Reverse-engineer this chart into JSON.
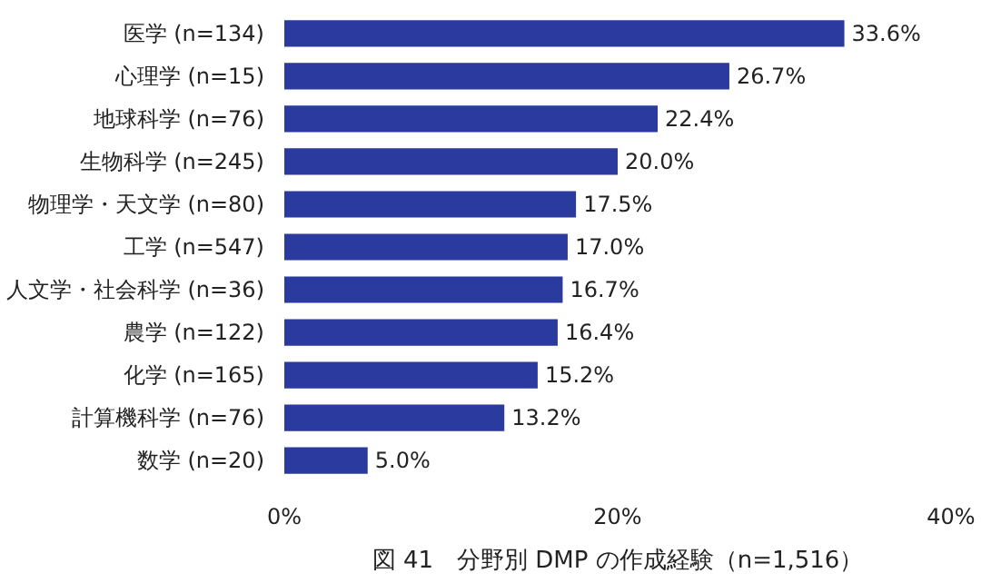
{
  "chart_data": {
    "type": "bar",
    "orientation": "horizontal",
    "title": "図 41　分野別 DMP の作成経験（n=1,516）",
    "categories": [
      "医学 (n=134)",
      "心理学 (n=15)",
      "地球科学 (n=76)",
      "生物科学 (n=245)",
      "物理学・天文学 (n=80)",
      "工学 (n=547)",
      "人文学・社会科学 (n=36)",
      "農学 (n=122)",
      "化学 (n=165)",
      "計算機科学 (n=76)",
      "数学 (n=20)"
    ],
    "values": [
      33.6,
      26.7,
      22.4,
      20.0,
      17.5,
      17.0,
      16.7,
      16.4,
      15.2,
      13.2,
      5.0
    ],
    "value_labels": [
      "33.6%",
      "26.7%",
      "22.4%",
      "20.0%",
      "17.5%",
      "17.0%",
      "16.7%",
      "16.4%",
      "15.2%",
      "13.2%",
      "5.0%"
    ],
    "color": "#2b3a9e",
    "xlim": [
      0,
      40
    ],
    "xticks": [
      {
        "value": 0,
        "label": "0%"
      },
      {
        "value": 20,
        "label": "20%"
      },
      {
        "value": 40,
        "label": "40%"
      }
    ],
    "grid": false
  }
}
